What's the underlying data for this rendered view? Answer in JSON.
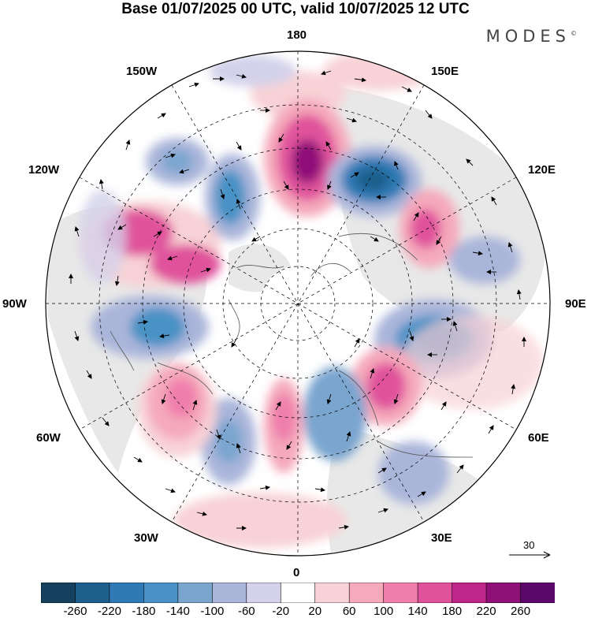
{
  "title": "Base 01/07/2025 00 UTC, valid 10/07/2025 12 UTC",
  "brand": "MODES",
  "brand_mark": "©",
  "longitude_labels": {
    "lon_180": "180",
    "lon_150e": "150E",
    "lon_120e": "120E",
    "lon_90e": "90E",
    "lon_60e": "60E",
    "lon_30e": "30E",
    "lon_0": "0",
    "lon_30w": "30W",
    "lon_60w": "60W",
    "lon_90w": "90W",
    "lon_120w": "120W",
    "lon_150w": "150W"
  },
  "vector_reference": "30",
  "colorbar": {
    "labels": [
      "-260",
      "-220",
      "-180",
      "-140",
      "-100",
      "-60",
      "-20",
      "20",
      "60",
      "100",
      "140",
      "180",
      "220",
      "260"
    ],
    "colors": [
      "#16415e",
      "#1e5f8c",
      "#2f7ab5",
      "#4a92c5",
      "#7aa5cf",
      "#aab5da",
      "#d3d2ea",
      "#ffffff",
      "#f8d2d6",
      "#f5a9bb",
      "#ef7eab",
      "#e0529c",
      "#c0258a",
      "#8f1178",
      "#5c086a"
    ]
  },
  "map": {
    "projection": "north polar stereographic",
    "parallels_deg": [
      30,
      40,
      50,
      60,
      70,
      80
    ],
    "meridian_step_deg": 30
  }
}
